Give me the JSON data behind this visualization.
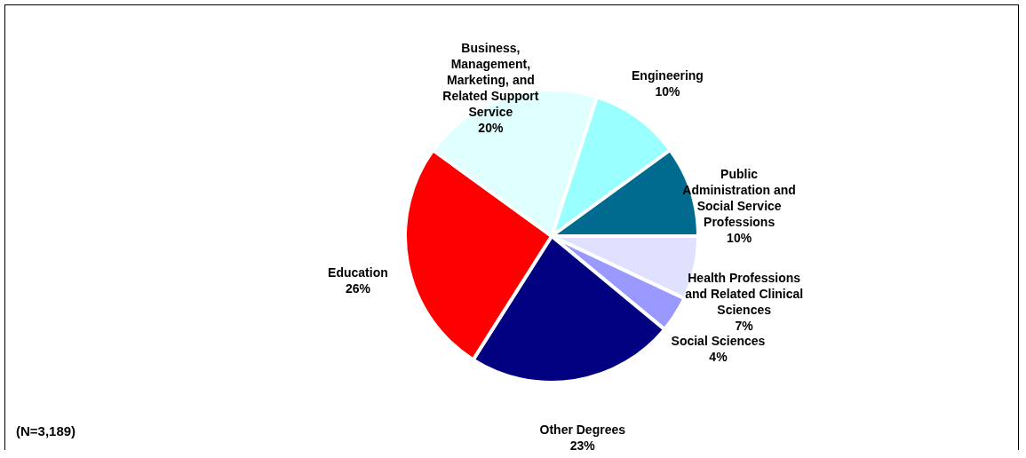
{
  "chart_data": {
    "type": "pie",
    "categories": [
      "Engineering",
      "Public Administration and Social Service Professions",
      "Health Professions and Related Clinical Sciences",
      "Social Sciences",
      "Other Degrees",
      "Education",
      "Business, Management, Marketing, and Related Support Service"
    ],
    "values": [
      10,
      10,
      7,
      4,
      23,
      26,
      20
    ],
    "colors": [
      "#99ffff",
      "#006b8f",
      "#e0e0ff",
      "#9999ff",
      "#000080",
      "#ff0000",
      "#e0ffff"
    ],
    "annotations": [
      "(N=3,189)"
    ],
    "value_labels": [
      "10%",
      "10%",
      "7%",
      "4%",
      "23%",
      "26%",
      "20%"
    ]
  }
}
